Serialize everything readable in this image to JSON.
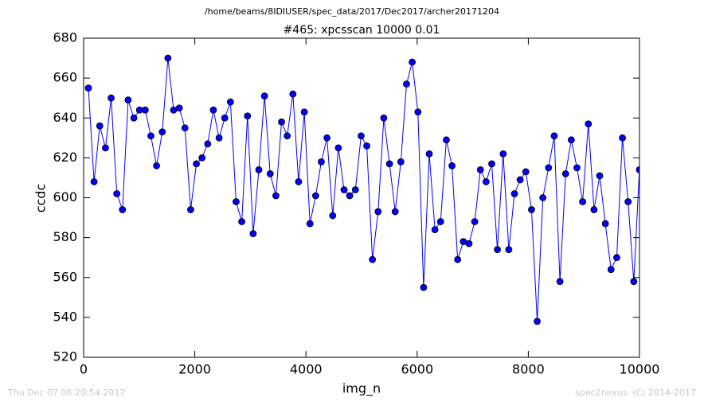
{
  "chart_data": {
    "type": "line",
    "title": "/home/beams/8IDIUSER/spec_data/2017/Dec2017/archer20171204",
    "subtitle": "#465: xpcsscan 10000 0.01",
    "xlabel": "img_n",
    "ylabel": "ccdc",
    "x": [
      86,
      188,
      290,
      393,
      495,
      597,
      699,
      801,
      904,
      1006,
      1108,
      1210,
      1312,
      1415,
      1517,
      1619,
      1721,
      1823,
      1926,
      2028,
      2130,
      2232,
      2334,
      2437,
      2539,
      2641,
      2743,
      2845,
      2948,
      3050,
      3152,
      3254,
      3356,
      3459,
      3561,
      3663,
      3765,
      3867,
      3970,
      4072,
      4174,
      4276,
      4378,
      4481,
      4583,
      4685,
      4787,
      4889,
      4992,
      5094,
      5196,
      5298,
      5400,
      5503,
      5605,
      5707,
      5809,
      5911,
      6014,
      6116,
      6218,
      6320,
      6422,
      6525,
      6627,
      6729,
      6831,
      6933,
      7036,
      7138,
      7240,
      7342,
      7444,
      7547,
      7649,
      7751,
      7853,
      7955,
      8058,
      8160,
      8262,
      8364,
      8466,
      8569,
      8671,
      8773,
      8875,
      8977,
      9080,
      9182,
      9284,
      9386,
      9488,
      9591,
      9693,
      9795,
      9897,
      9999
    ],
    "series": [
      {
        "color": "#0000ff",
        "values": [
          655,
          608,
          636,
          625,
          650,
          602,
          594,
          649,
          640,
          644,
          644,
          631,
          616,
          633,
          670,
          644,
          645,
          635,
          594,
          617,
          620,
          627,
          644,
          630,
          640,
          648,
          598,
          588,
          641,
          582,
          614,
          651,
          612,
          601,
          638,
          631,
          652,
          608,
          643,
          587,
          601,
          618,
          630,
          591,
          625,
          604,
          601,
          604,
          631,
          626,
          569,
          593,
          640,
          617,
          593,
          618,
          657,
          668,
          643,
          555,
          622,
          584,
          588,
          629,
          616,
          569,
          578,
          577,
          588,
          614,
          608,
          617,
          574,
          622,
          574,
          602,
          609,
          613,
          594,
          538,
          600,
          615,
          631,
          558,
          612,
          629,
          615,
          598,
          637,
          594,
          611,
          587,
          564,
          570,
          630,
          598,
          558,
          614
        ]
      }
    ],
    "xlim": [
      0,
      10000
    ],
    "xticks": [
      0,
      2000,
      4000,
      6000,
      8000,
      10000
    ],
    "ylim": [
      520,
      680
    ],
    "yticks": [
      520,
      540,
      560,
      580,
      600,
      620,
      640,
      660,
      680
    ]
  },
  "footer": {
    "left": "Thu Dec 07 06:20:54 2017",
    "right": "spec2nexus, (C) 2014-2017"
  }
}
